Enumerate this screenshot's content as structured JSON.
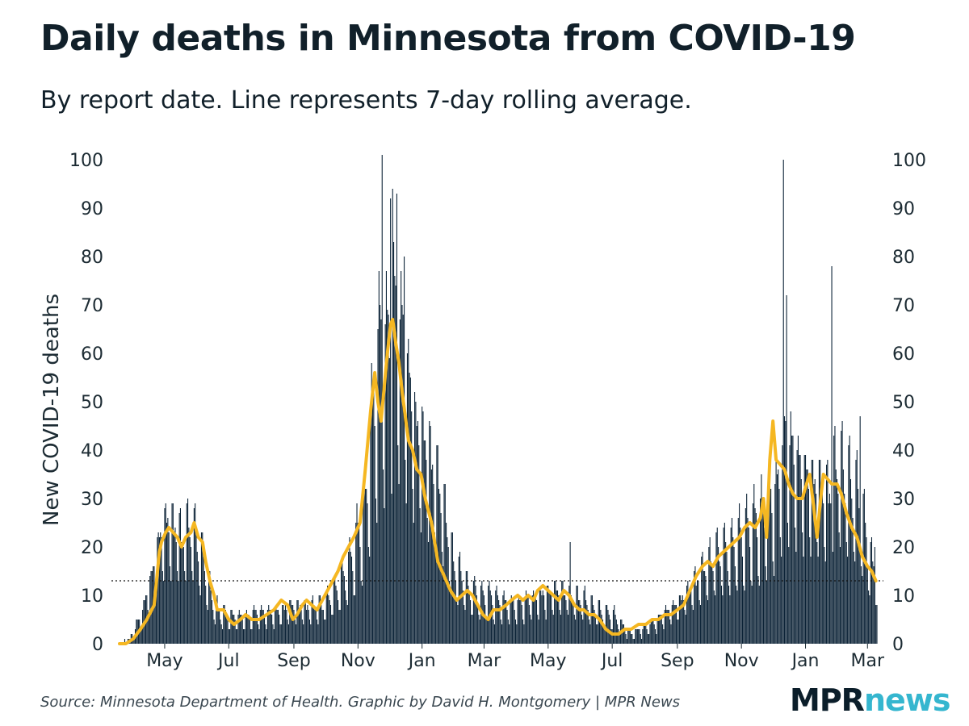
{
  "title": "Daily deaths in Minnesota from COVID-19",
  "subtitle": "By report date. Line represents 7-day rolling average.",
  "source": "Source: Minnesota Department of Health. Graphic by David H. Montgomery | MPR News",
  "logo": {
    "part1": "MPR",
    "part2": "news"
  },
  "colors": {
    "bars": "#0b2236",
    "line": "#f5b722",
    "text": "#1c2b33",
    "reference": "#111111"
  },
  "chart_data": {
    "type": "bar",
    "ylabel": "New COVID-19 deaths",
    "xlabel": "",
    "ylim": [
      0,
      100
    ],
    "yticks": [
      0,
      10,
      20,
      30,
      40,
      50,
      60,
      70,
      80,
      90,
      100
    ],
    "x_start_date": "2020-03-19",
    "xticks": [
      {
        "label": "May",
        "date": "2020-05-01"
      },
      {
        "label": "Jul",
        "date": "2020-07-01"
      },
      {
        "label": "Sep",
        "date": "2020-09-01"
      },
      {
        "label": "Nov",
        "date": "2020-11-01"
      },
      {
        "label": "Jan",
        "date": "2021-01-01"
      },
      {
        "label": "Mar",
        "date": "2021-03-01"
      },
      {
        "label": "May",
        "date": "2021-05-01"
      },
      {
        "label": "Jul",
        "date": "2021-07-01"
      },
      {
        "label": "Sep",
        "date": "2021-09-01"
      },
      {
        "label": "Nov",
        "date": "2021-11-01"
      },
      {
        "label": "Jan",
        "date": "2022-01-01"
      },
      {
        "label": "Mar",
        "date": "2022-03-01"
      }
    ],
    "reference_line": 13,
    "bars_series": {
      "name": "Daily new deaths",
      "weekly_average_anchors": [
        [
          "2020-03-19",
          0
        ],
        [
          "2020-03-29",
          1
        ],
        [
          "2020-04-08",
          5
        ],
        [
          "2020-04-18",
          12
        ],
        [
          "2020-04-26",
          20
        ],
        [
          "2020-05-03",
          23
        ],
        [
          "2020-05-10",
          22
        ],
        [
          "2020-05-17",
          20
        ],
        [
          "2020-05-24",
          22
        ],
        [
          "2020-05-31",
          20
        ],
        [
          "2020-06-07",
          15
        ],
        [
          "2020-06-14",
          9
        ],
        [
          "2020-06-21",
          6
        ],
        [
          "2020-07-05",
          5
        ],
        [
          "2020-07-19",
          5
        ],
        [
          "2020-08-02",
          6
        ],
        [
          "2020-08-16",
          6
        ],
        [
          "2020-08-30",
          7
        ],
        [
          "2020-09-13",
          7
        ],
        [
          "2020-09-27",
          7
        ],
        [
          "2020-10-11",
          10
        ],
        [
          "2020-10-25",
          15
        ],
        [
          "2020-11-08",
          25
        ],
        [
          "2020-11-15",
          42
        ],
        [
          "2020-11-22",
          56
        ],
        [
          "2020-11-29",
          55
        ],
        [
          "2020-12-06",
          62
        ],
        [
          "2020-12-13",
          58
        ],
        [
          "2020-12-20",
          48
        ],
        [
          "2020-12-27",
          40
        ],
        [
          "2021-01-03",
          38
        ],
        [
          "2021-01-17",
          30
        ],
        [
          "2021-01-31",
          15
        ],
        [
          "2021-02-14",
          10
        ],
        [
          "2021-02-28",
          9
        ],
        [
          "2021-03-14",
          8
        ],
        [
          "2021-03-28",
          7
        ],
        [
          "2021-04-11",
          8
        ],
        [
          "2021-04-25",
          9
        ],
        [
          "2021-05-09",
          10
        ],
        [
          "2021-05-23",
          9
        ],
        [
          "2021-06-06",
          8
        ],
        [
          "2021-06-20",
          6
        ],
        [
          "2021-07-04",
          5
        ],
        [
          "2021-07-18",
          2
        ],
        [
          "2021-08-01",
          3
        ],
        [
          "2021-08-15",
          5
        ],
        [
          "2021-08-29",
          7
        ],
        [
          "2021-09-12",
          10
        ],
        [
          "2021-09-26",
          14
        ],
        [
          "2021-10-10",
          17
        ],
        [
          "2021-10-24",
          18
        ],
        [
          "2021-11-07",
          21
        ],
        [
          "2021-11-21",
          24
        ],
        [
          "2021-12-05",
          28
        ],
        [
          "2021-12-12",
          38
        ],
        [
          "2021-12-19",
          36
        ],
        [
          "2021-12-26",
          33
        ],
        [
          "2022-01-09",
          30
        ],
        [
          "2022-01-23",
          28
        ],
        [
          "2022-01-30",
          33
        ],
        [
          "2022-02-06",
          32
        ],
        [
          "2022-02-20",
          27
        ],
        [
          "2022-03-06",
          14
        ]
      ],
      "notable_values": [
        [
          "2020-11-24",
          101
        ],
        [
          "2020-12-02",
          92
        ],
        [
          "2020-12-04",
          94
        ],
        [
          "2020-12-08",
          93
        ],
        [
          "2020-12-15",
          80
        ],
        [
          "2021-05-22",
          21
        ],
        [
          "2021-12-11",
          100
        ],
        [
          "2021-12-14",
          72
        ],
        [
          "2022-01-26",
          78
        ],
        [
          "2022-02-22",
          47
        ],
        [
          "2022-03-08",
          20
        ]
      ]
    },
    "line_series": {
      "name": "7-day rolling average",
      "anchors": [
        [
          "2020-03-19",
          0
        ],
        [
          "2020-03-25",
          0
        ],
        [
          "2020-04-01",
          1
        ],
        [
          "2020-04-08",
          3
        ],
        [
          "2020-04-14",
          5
        ],
        [
          "2020-04-21",
          8
        ],
        [
          "2020-04-26",
          19
        ],
        [
          "2020-04-28",
          21
        ],
        [
          "2020-05-02",
          23
        ],
        [
          "2020-05-05",
          24
        ],
        [
          "2020-05-09",
          23
        ],
        [
          "2020-05-13",
          22
        ],
        [
          "2020-05-17",
          20
        ],
        [
          "2020-05-21",
          22
        ],
        [
          "2020-05-26",
          23
        ],
        [
          "2020-05-29",
          25
        ],
        [
          "2020-06-02",
          22
        ],
        [
          "2020-06-06",
          21
        ],
        [
          "2020-06-09",
          17
        ],
        [
          "2020-06-13",
          13
        ],
        [
          "2020-06-17",
          10
        ],
        [
          "2020-06-20",
          7
        ],
        [
          "2020-06-26",
          7
        ],
        [
          "2020-07-01",
          5
        ],
        [
          "2020-07-06",
          4
        ],
        [
          "2020-07-12",
          5
        ],
        [
          "2020-07-17",
          6
        ],
        [
          "2020-07-23",
          5
        ],
        [
          "2020-07-30",
          5
        ],
        [
          "2020-08-06",
          6
        ],
        [
          "2020-08-13",
          7
        ],
        [
          "2020-08-20",
          9
        ],
        [
          "2020-08-26",
          8
        ],
        [
          "2020-08-31",
          5
        ],
        [
          "2020-09-04",
          6
        ],
        [
          "2020-09-09",
          8
        ],
        [
          "2020-09-13",
          9
        ],
        [
          "2020-09-18",
          8
        ],
        [
          "2020-09-23",
          7
        ],
        [
          "2020-09-28",
          9
        ],
        [
          "2020-10-03",
          11
        ],
        [
          "2020-10-08",
          13
        ],
        [
          "2020-10-13",
          15
        ],
        [
          "2020-10-18",
          18
        ],
        [
          "2020-10-23",
          20
        ],
        [
          "2020-10-28",
          22
        ],
        [
          "2020-11-03",
          25
        ],
        [
          "2020-11-08",
          36
        ],
        [
          "2020-11-13",
          48
        ],
        [
          "2020-11-17",
          56
        ],
        [
          "2020-11-20",
          50
        ],
        [
          "2020-11-23",
          46
        ],
        [
          "2020-11-26",
          53
        ],
        [
          "2020-11-29",
          60
        ],
        [
          "2020-12-02",
          66
        ],
        [
          "2020-12-04",
          67
        ],
        [
          "2020-12-07",
          62
        ],
        [
          "2020-12-10",
          58
        ],
        [
          "2020-12-13",
          52
        ],
        [
          "2020-12-16",
          47
        ],
        [
          "2020-12-19",
          42
        ],
        [
          "2020-12-23",
          40
        ],
        [
          "2020-12-27",
          36
        ],
        [
          "2020-12-31",
          35
        ],
        [
          "2021-01-04",
          30
        ],
        [
          "2021-01-10",
          25
        ],
        [
          "2021-01-16",
          17
        ],
        [
          "2021-01-22",
          14
        ],
        [
          "2021-01-28",
          11
        ],
        [
          "2021-02-03",
          9
        ],
        [
          "2021-02-08",
          10
        ],
        [
          "2021-02-13",
          11
        ],
        [
          "2021-02-18",
          10
        ],
        [
          "2021-02-23",
          8
        ],
        [
          "2021-02-28",
          6
        ],
        [
          "2021-03-05",
          5
        ],
        [
          "2021-03-10",
          7
        ],
        [
          "2021-03-16",
          7
        ],
        [
          "2021-03-22",
          8
        ],
        [
          "2021-03-27",
          9
        ],
        [
          "2021-04-02",
          10
        ],
        [
          "2021-04-07",
          9
        ],
        [
          "2021-04-12",
          10
        ],
        [
          "2021-04-17",
          9
        ],
        [
          "2021-04-21",
          11
        ],
        [
          "2021-04-26",
          12
        ],
        [
          "2021-05-01",
          11
        ],
        [
          "2021-05-06",
          10
        ],
        [
          "2021-05-11",
          9
        ],
        [
          "2021-05-16",
          11
        ],
        [
          "2021-05-21",
          10
        ],
        [
          "2021-05-26",
          8
        ],
        [
          "2021-05-31",
          7
        ],
        [
          "2021-06-04",
          7
        ],
        [
          "2021-06-09",
          6
        ],
        [
          "2021-06-14",
          6
        ],
        [
          "2021-06-19",
          5
        ],
        [
          "2021-06-25",
          3
        ],
        [
          "2021-07-01",
          2
        ],
        [
          "2021-07-07",
          2
        ],
        [
          "2021-07-13",
          3
        ],
        [
          "2021-07-19",
          3
        ],
        [
          "2021-07-26",
          4
        ],
        [
          "2021-08-02",
          4
        ],
        [
          "2021-08-08",
          5
        ],
        [
          "2021-08-14",
          5
        ],
        [
          "2021-08-20",
          6
        ],
        [
          "2021-08-26",
          6
        ],
        [
          "2021-09-01",
          7
        ],
        [
          "2021-09-07",
          8
        ],
        [
          "2021-09-13",
          11
        ],
        [
          "2021-09-19",
          14
        ],
        [
          "2021-09-25",
          16
        ],
        [
          "2021-09-30",
          17
        ],
        [
          "2021-10-05",
          16
        ],
        [
          "2021-10-10",
          18
        ],
        [
          "2021-10-15",
          19
        ],
        [
          "2021-10-20",
          20
        ],
        [
          "2021-10-25",
          21
        ],
        [
          "2021-10-30",
          22
        ],
        [
          "2021-11-04",
          24
        ],
        [
          "2021-11-09",
          25
        ],
        [
          "2021-11-14",
          24
        ],
        [
          "2021-11-19",
          26
        ],
        [
          "2021-11-22",
          30
        ],
        [
          "2021-11-25",
          22
        ],
        [
          "2021-11-28",
          38
        ],
        [
          "2021-12-01",
          46
        ],
        [
          "2021-12-04",
          38
        ],
        [
          "2021-12-08",
          37
        ],
        [
          "2021-12-12",
          36
        ],
        [
          "2021-12-16",
          33
        ],
        [
          "2021-12-20",
          31
        ],
        [
          "2021-12-24",
          30
        ],
        [
          "2021-12-29",
          30
        ],
        [
          "2022-01-02",
          33
        ],
        [
          "2022-01-05",
          35
        ],
        [
          "2022-01-09",
          28
        ],
        [
          "2022-01-12",
          22
        ],
        [
          "2022-01-15",
          29
        ],
        [
          "2022-01-18",
          35
        ],
        [
          "2022-01-22",
          34
        ],
        [
          "2022-01-26",
          33
        ],
        [
          "2022-01-31",
          33
        ],
        [
          "2022-02-04",
          31
        ],
        [
          "2022-02-09",
          27
        ],
        [
          "2022-02-14",
          24
        ],
        [
          "2022-02-19",
          22
        ],
        [
          "2022-02-24",
          18
        ],
        [
          "2022-03-01",
          16
        ],
        [
          "2022-03-05",
          15
        ],
        [
          "2022-03-09",
          13
        ]
      ]
    }
  }
}
